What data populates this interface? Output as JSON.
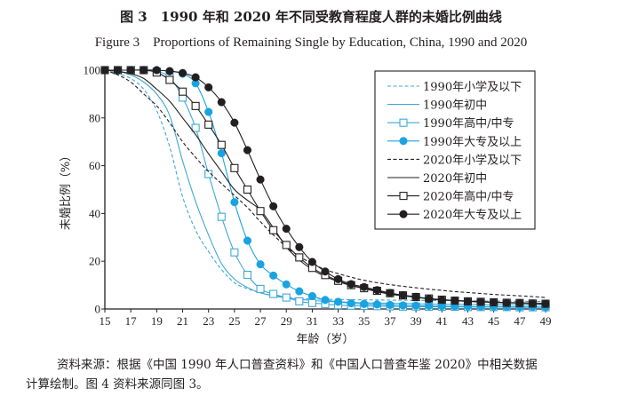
{
  "chart_data": {
    "type": "line",
    "title": "图 3　1990 年和 2020 年不同受教育程度人群的未婚比例曲线",
    "subtitle": "Figure 3　Proportions of Remaining Single by Education, China, 1990 and 2020",
    "xlabel": "年龄（岁）",
    "ylabel": "未婚比例（%）",
    "xlim": [
      15,
      49
    ],
    "ylim": [
      0,
      100
    ],
    "xticks": [
      15,
      17,
      19,
      21,
      23,
      25,
      27,
      29,
      31,
      33,
      35,
      37,
      39,
      41,
      43,
      45,
      47,
      49
    ],
    "yticks": [
      0,
      20,
      40,
      60,
      80,
      100
    ],
    "grid": false,
    "legend_position": "top-right",
    "x": [
      15,
      16,
      17,
      18,
      19,
      20,
      21,
      22,
      23,
      24,
      25,
      26,
      27,
      28,
      29,
      30,
      31,
      32,
      33,
      34,
      35,
      36,
      37,
      38,
      39,
      40,
      41,
      42,
      43,
      44,
      45,
      46,
      47,
      48,
      49
    ],
    "series": [
      {
        "name": "1990年小学及以下",
        "color": "#3fa9d6",
        "style": "dashed",
        "marker": "none",
        "values": [
          100,
          98.5,
          96.5,
          92,
          83,
          68,
          47,
          33,
          24,
          16.5,
          11,
          8.5,
          6.8,
          5.7,
          5,
          4.4,
          4.2,
          4.1,
          4,
          3.9,
          3.8,
          3.8,
          3.7,
          3.7,
          3.6,
          3.6,
          3.5,
          3.5,
          3.4,
          3.4,
          3.3,
          3.3,
          3.2,
          3.2,
          3.2
        ]
      },
      {
        "name": "1990年初中",
        "color": "#3fa9d6",
        "style": "solid",
        "marker": "none",
        "values": [
          100,
          99.5,
          98,
          95,
          90,
          81,
          62,
          45,
          31,
          19,
          12.5,
          9,
          6.8,
          5.5,
          4.6,
          4,
          3.6,
          3.2,
          3,
          2.8,
          2.6,
          2.5,
          2.4,
          2.3,
          2.2,
          2.1,
          2,
          2,
          1.9,
          1.9,
          1.8,
          1.8,
          1.7,
          1.7,
          1.7
        ]
      },
      {
        "name": "1990年高中/中专",
        "color": "#3fa9d6",
        "style": "solid",
        "marker": "open-square",
        "values": [
          100,
          100,
          100,
          100,
          99.5,
          97,
          88.5,
          75.8,
          56.5,
          38.6,
          23.7,
          14.3,
          8.4,
          6.3,
          4.8,
          3.2,
          2.5,
          2.1,
          1.6,
          1.4,
          1.3,
          1.2,
          1.1,
          1,
          1,
          0.9,
          0.9,
          0.9,
          0.8,
          0.8,
          0.8,
          0.8,
          0.7,
          0.7,
          0.7
        ]
      },
      {
        "name": "1990年大专及以上",
        "color": "#1aa3e0",
        "style": "solid",
        "marker": "filled-circle",
        "values": [
          100,
          100,
          100,
          100,
          100,
          99.5,
          98.5,
          94.5,
          82.5,
          65.2,
          44.7,
          28.6,
          18.7,
          14,
          10.3,
          7.4,
          5.4,
          3.8,
          3,
          2.4,
          2.1,
          1.9,
          1.7,
          1.5,
          1.4,
          1.3,
          1.2,
          1.1,
          1.1,
          1,
          1,
          0.9,
          0.9,
          0.9,
          0.8
        ]
      },
      {
        "name": "2020年小学及以下",
        "color": "#231f20",
        "style": "dashed",
        "marker": "none",
        "values": [
          100,
          98,
          95,
          90,
          85,
          78,
          70,
          63.5,
          57.5,
          52.5,
          47.5,
          42.5,
          36.5,
          31,
          26,
          22,
          19,
          16.5,
          14.8,
          13.3,
          12,
          11,
          10.2,
          9.5,
          8.9,
          8.3,
          7.8,
          7.3,
          6.9,
          6.5,
          6.1,
          5.8,
          5.5,
          5.2,
          4.8
        ]
      },
      {
        "name": "2020年初中",
        "color": "#231f20",
        "style": "solid",
        "marker": "none",
        "values": [
          100,
          99.5,
          98.5,
          96.5,
          92,
          87,
          80,
          73,
          65,
          57.5,
          50,
          45.5,
          41.4,
          34,
          26,
          20.5,
          16.5,
          13.6,
          11.5,
          9.8,
          8.5,
          7.3,
          6.2,
          5.5,
          4.9,
          4.3,
          3.9,
          3.6,
          3.3,
          3.1,
          2.9,
          2.7,
          2.6,
          2.5,
          2.4
        ]
      },
      {
        "name": "2020年高中/中专",
        "color": "#231f20",
        "style": "solid",
        "marker": "open-square",
        "values": [
          100,
          100,
          100,
          100,
          99,
          95.9,
          91,
          85,
          77.2,
          68.7,
          59,
          50,
          41,
          33,
          26.8,
          21.6,
          17.2,
          14.2,
          11.8,
          10,
          8.7,
          7.6,
          6.6,
          5.7,
          5,
          4.4,
          3.9,
          3.5,
          3.2,
          3,
          2.8,
          2.6,
          2.5,
          2.3,
          2.2
        ]
      },
      {
        "name": "2020年大专及以上",
        "color": "#231f20",
        "style": "solid",
        "marker": "filled-circle",
        "values": [
          100,
          100,
          100,
          100,
          100,
          99.6,
          98.8,
          97,
          92.8,
          86.6,
          78,
          66.5,
          54.2,
          43,
          33.6,
          25.9,
          19.7,
          15.7,
          12.5,
          10.4,
          9.2,
          7.9,
          6.7,
          5.8,
          5.1,
          4.2,
          3.8,
          3.5,
          3.2,
          3,
          2.8,
          2.6,
          2.5,
          2.3,
          2.2
        ]
      }
    ]
  },
  "source_note": {
    "line1": "资料来源：根据《中国 1990 年人口普查资料》和《中国人口普查年鉴 2020》中相关数据",
    "line2": "计算绘制。图 4 资料来源同图 3。"
  }
}
